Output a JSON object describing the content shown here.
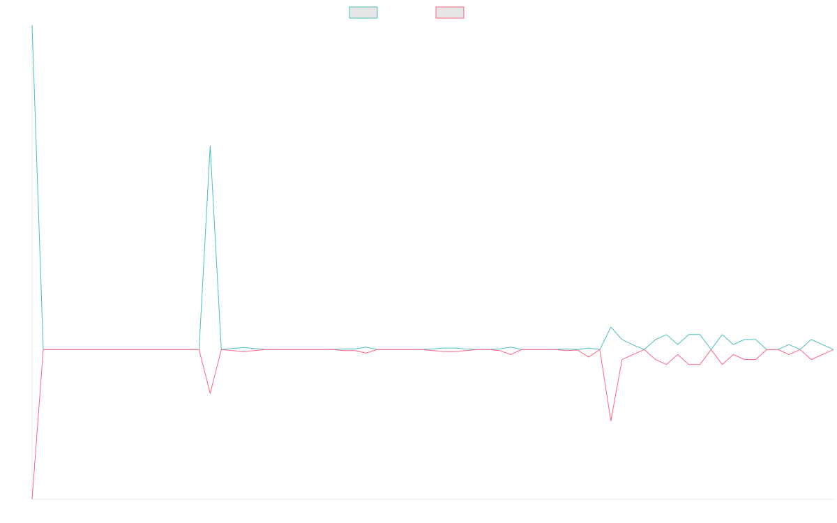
{
  "colors": {
    "background": "#ffffff",
    "axis": "#e6e6e6",
    "legend_fill": "#e6e6e6"
  },
  "chart_data": {
    "type": "line",
    "title": "",
    "xlabel": "",
    "ylabel": "",
    "x_tick_labels": [],
    "y_tick_labels": [],
    "ylim": [
      -300,
      650
    ],
    "grid": false,
    "legend_position": "top-center",
    "series": [
      {
        "color": "#4bc0c0",
        "values": [
          650,
          0,
          0,
          0,
          0,
          0,
          0,
          0,
          0,
          0,
          0,
          0,
          0,
          0,
          0,
          0,
          408,
          0,
          2,
          4,
          2,
          0,
          0,
          0,
          0,
          0,
          0,
          0,
          1,
          1,
          5,
          0,
          0,
          0,
          0,
          0,
          1,
          3,
          3,
          1,
          0,
          0,
          1,
          5,
          0,
          0,
          0,
          0,
          1,
          0,
          3,
          0,
          45,
          20,
          9,
          0,
          20,
          30,
          10,
          30,
          30,
          0,
          30,
          10,
          20,
          20,
          0,
          0,
          10,
          0,
          20,
          10,
          0
        ]
      },
      {
        "color": "#ff6384",
        "values": [
          -300,
          0,
          0,
          0,
          0,
          0,
          0,
          0,
          0,
          0,
          0,
          0,
          0,
          0,
          0,
          0,
          -88,
          0,
          -2,
          -4,
          -2,
          0,
          0,
          0,
          0,
          0,
          0,
          0,
          -2,
          -2,
          -7,
          0,
          0,
          0,
          0,
          0,
          -2,
          -4,
          -4,
          -2,
          0,
          0,
          -2,
          -10,
          0,
          0,
          0,
          0,
          -2,
          -1,
          -15,
          0,
          -143,
          -20,
          -10,
          0,
          -20,
          -30,
          -10,
          -30,
          -30,
          0,
          -30,
          -10,
          -20,
          -20,
          0,
          0,
          -10,
          0,
          -20,
          -10,
          0
        ]
      }
    ]
  }
}
